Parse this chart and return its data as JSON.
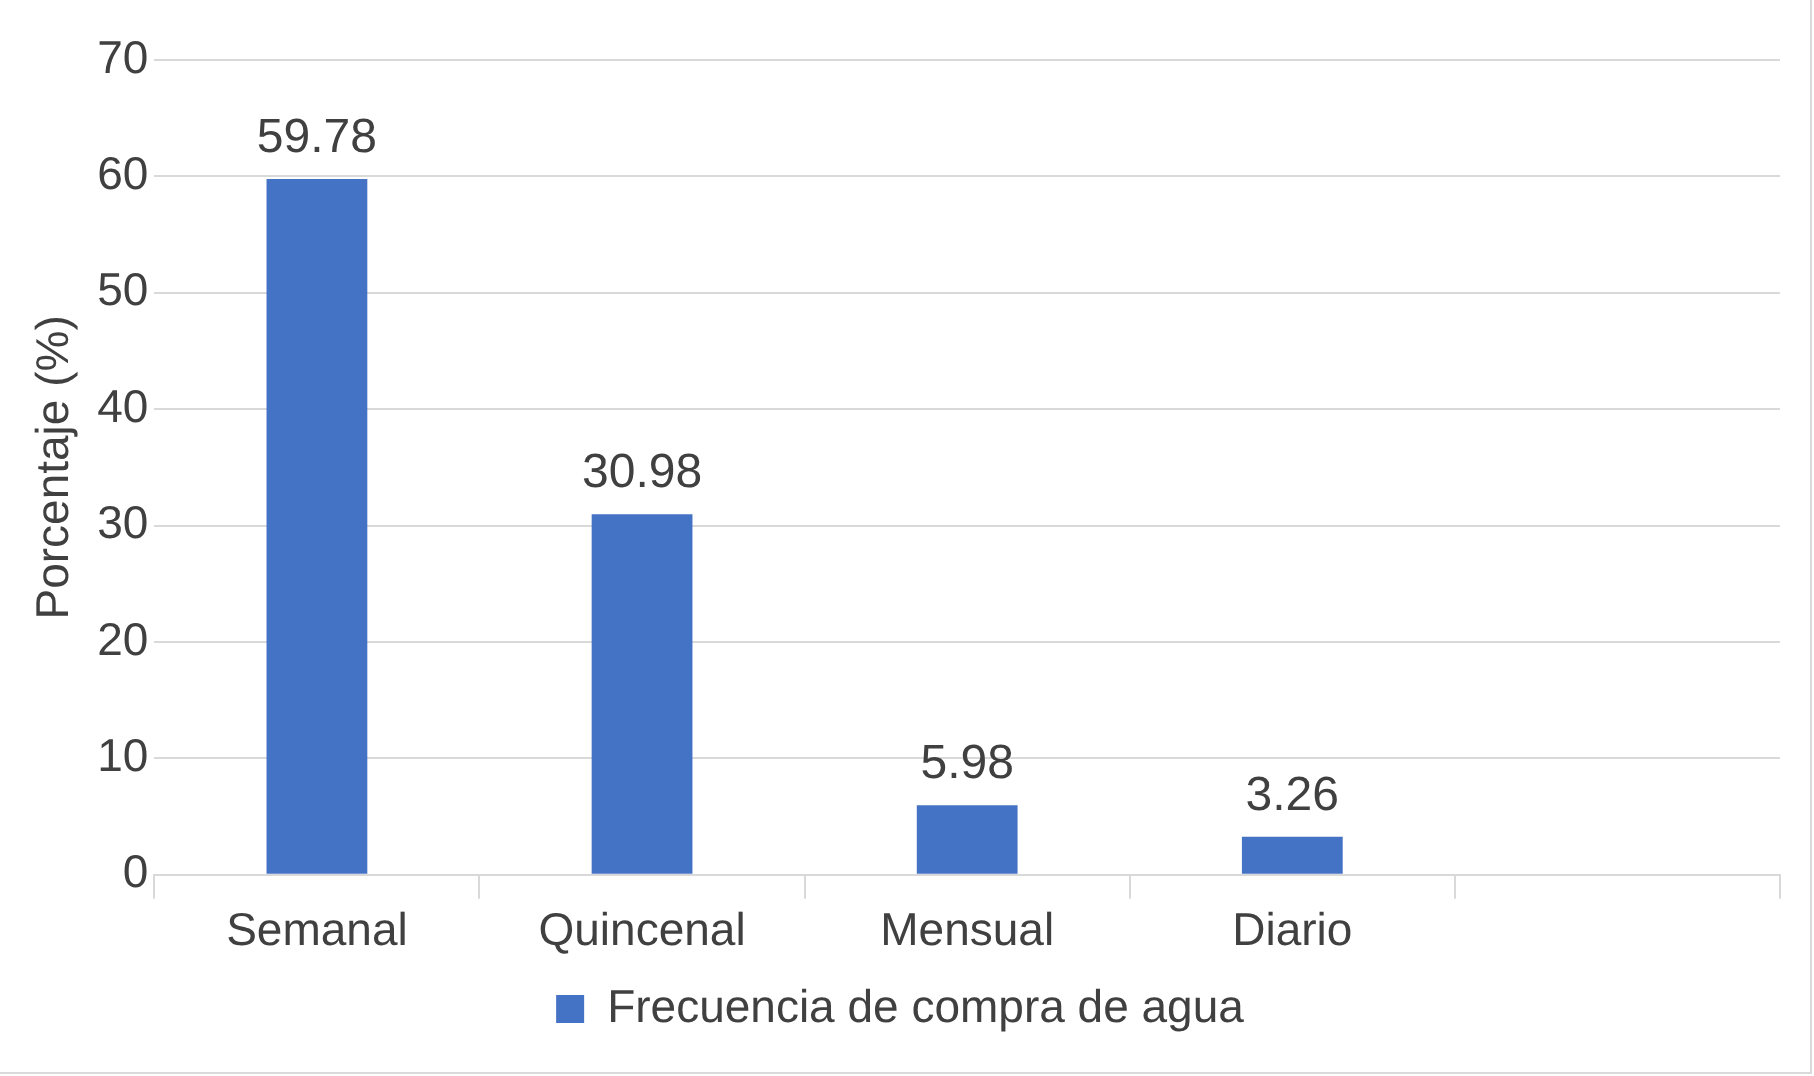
{
  "chart_data": {
    "type": "bar",
    "ylabel": "Porcentaje (%)",
    "categories": [
      "Semanal",
      "Quincenal",
      "Mensual",
      "Diario",
      null
    ],
    "series": [
      {
        "name": "Frecuencia de compra de agua",
        "color": "#4472c4",
        "values": [
          59.78,
          30.98,
          5.98,
          3.26,
          null
        ]
      }
    ],
    "ylim": [
      0,
      70
    ],
    "yticks": [
      0,
      10,
      20,
      30,
      40,
      50,
      60,
      70
    ],
    "grid": "y",
    "legend": "bottom",
    "data_labels": true
  }
}
